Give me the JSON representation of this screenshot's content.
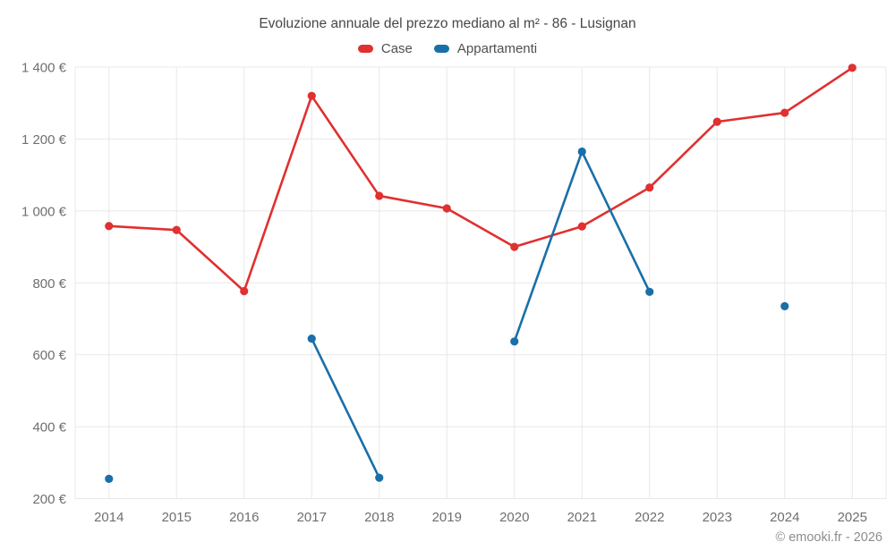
{
  "header": {
    "title": "Evoluzione annuale del prezzo mediano al m² - 86 - Lusignan",
    "attribution": "© emooki.fr - 2026"
  },
  "colors": {
    "case_red": "#e03030",
    "appartamenti_blue": "#1a6fa8",
    "grid": "#e8e8e8",
    "tick_text": "#6f6f6f"
  },
  "chart_data": {
    "type": "line",
    "title": "Evoluzione annuale del prezzo mediano al m² - 86 - Lusignan",
    "xlabel": "",
    "ylabel": "",
    "x": [
      "2014",
      "2015",
      "2016",
      "2017",
      "2018",
      "2019",
      "2020",
      "2021",
      "2022",
      "2023",
      "2024",
      "2025"
    ],
    "series": [
      {
        "name": "Case",
        "color": "#e03030",
        "values": [
          958,
          947,
          777,
          1320,
          1042,
          1007,
          900,
          957,
          1065,
          1248,
          1273,
          1398
        ]
      },
      {
        "name": "Appartamenti",
        "color": "#1a6fa8",
        "values": [
          255,
          null,
          null,
          645,
          258,
          null,
          637,
          1165,
          775,
          null,
          735,
          null
        ]
      }
    ],
    "ylim": [
      200,
      1400
    ],
    "yticks": [
      200,
      400,
      600,
      800,
      1000,
      1200,
      1400
    ],
    "ytick_labels": [
      "200 €",
      "400 €",
      "600 €",
      "800 €",
      "1 000 €",
      "1 200 €",
      "1 400 €"
    ],
    "grid": true,
    "legend_position": "top",
    "currency": "€"
  }
}
